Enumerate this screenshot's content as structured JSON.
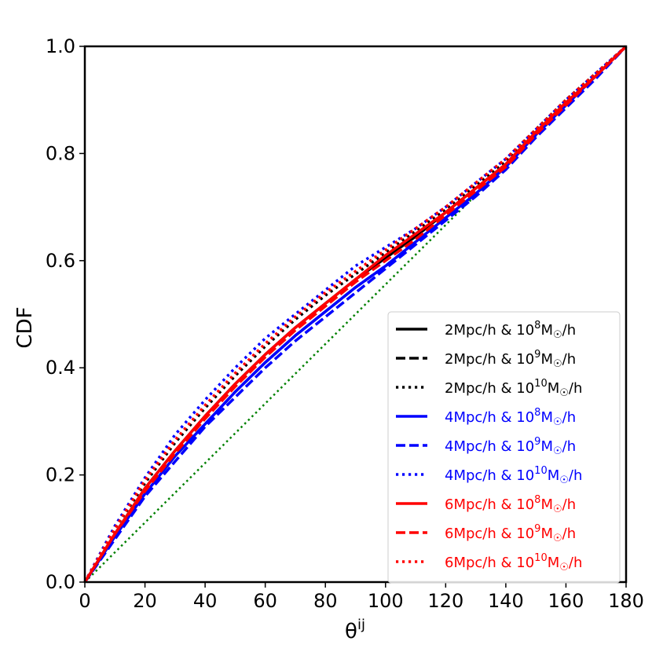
{
  "chart_data": {
    "type": "line",
    "title": "",
    "xlabel": "θ",
    "xlabel_superscript": "ij",
    "ylabel": "CDF",
    "xlim": [
      0,
      180
    ],
    "ylim": [
      0,
      1.0
    ],
    "xticks": [
      "0",
      "20",
      "40",
      "60",
      "80",
      "100",
      "120",
      "140",
      "160",
      "180"
    ],
    "yticks": [
      "0.0",
      "0.2",
      "0.4",
      "0.6",
      "0.8",
      "1.0"
    ],
    "grid": false,
    "legend_position": "bottom-right",
    "reference_line": {
      "name": "uniform reference",
      "color": "#008000",
      "style": "dotted",
      "x": [
        0,
        180
      ],
      "y": [
        0,
        1.0
      ]
    },
    "series": [
      {
        "name": "2Mpc/h & 10^8M☉/h",
        "legend": {
          "prefix": "2Mpc/h & 10",
          "exp": "8",
          "suffix": "M",
          "sun": "☉",
          "tail": "/h"
        },
        "color": "#000000",
        "style": "solid",
        "x": [
          0,
          10,
          20,
          30,
          40,
          50,
          60,
          70,
          80,
          90,
          100,
          110,
          120,
          130,
          140,
          150,
          160,
          170,
          180
        ],
        "y": [
          0.0,
          0.09,
          0.175,
          0.245,
          0.31,
          0.37,
          0.425,
          0.475,
          0.52,
          0.565,
          0.605,
          0.645,
          0.69,
          0.735,
          0.78,
          0.84,
          0.895,
          0.945,
          1.0
        ]
      },
      {
        "name": "2Mpc/h & 10^9M☉/h",
        "legend": {
          "prefix": "2Mpc/h & 10",
          "exp": "9",
          "suffix": "M",
          "sun": "☉",
          "tail": "/h"
        },
        "color": "#000000",
        "style": "dashed",
        "x": [
          0,
          10,
          20,
          30,
          40,
          50,
          60,
          70,
          80,
          90,
          100,
          110,
          120,
          130,
          140,
          150,
          160,
          170,
          180
        ],
        "y": [
          0.0,
          0.085,
          0.165,
          0.235,
          0.295,
          0.355,
          0.41,
          0.46,
          0.505,
          0.55,
          0.59,
          0.635,
          0.68,
          0.725,
          0.775,
          0.835,
          0.89,
          0.945,
          1.0
        ]
      },
      {
        "name": "2Mpc/h & 10^10M☉/h",
        "legend": {
          "prefix": "2Mpc/h & 10",
          "exp": "10",
          "suffix": "M",
          "sun": "☉",
          "tail": "/h"
        },
        "color": "#000000",
        "style": "dotted",
        "x": [
          0,
          10,
          20,
          30,
          40,
          50,
          60,
          70,
          80,
          90,
          100,
          110,
          120,
          130,
          140,
          150,
          160,
          170,
          180
        ],
        "y": [
          0.0,
          0.1,
          0.185,
          0.26,
          0.325,
          0.385,
          0.44,
          0.49,
          0.535,
          0.575,
          0.615,
          0.655,
          0.695,
          0.74,
          0.785,
          0.845,
          0.9,
          0.95,
          1.0
        ]
      },
      {
        "name": "4Mpc/h & 10^8M☉/h",
        "legend": {
          "prefix": "4Mpc/h & 10",
          "exp": "8",
          "suffix": "M",
          "sun": "☉",
          "tail": "/h"
        },
        "color": "#0000ff",
        "style": "solid",
        "x": [
          0,
          10,
          20,
          30,
          40,
          50,
          60,
          70,
          80,
          90,
          100,
          110,
          120,
          130,
          140,
          150,
          160,
          170,
          180
        ],
        "y": [
          0.0,
          0.085,
          0.165,
          0.235,
          0.295,
          0.355,
          0.41,
          0.46,
          0.505,
          0.55,
          0.59,
          0.635,
          0.68,
          0.725,
          0.775,
          0.835,
          0.89,
          0.945,
          1.0
        ]
      },
      {
        "name": "4Mpc/h & 10^9M☉/h",
        "legend": {
          "prefix": "4Mpc/h & 10",
          "exp": "9",
          "suffix": "M",
          "sun": "☉",
          "tail": "/h"
        },
        "color": "#0000ff",
        "style": "dashed",
        "x": [
          0,
          10,
          20,
          30,
          40,
          50,
          60,
          70,
          80,
          90,
          100,
          110,
          120,
          130,
          140,
          150,
          160,
          170,
          180
        ],
        "y": [
          0.0,
          0.08,
          0.16,
          0.225,
          0.29,
          0.345,
          0.4,
          0.45,
          0.495,
          0.54,
          0.585,
          0.63,
          0.675,
          0.72,
          0.77,
          0.83,
          0.885,
          0.94,
          1.0
        ]
      },
      {
        "name": "4Mpc/h & 10^10M☉/h",
        "legend": {
          "prefix": "4Mpc/h & 10",
          "exp": "10",
          "suffix": "M",
          "sun": "☉",
          "tail": "/h"
        },
        "color": "#0000ff",
        "style": "dotted",
        "x": [
          0,
          10,
          20,
          30,
          40,
          50,
          60,
          70,
          80,
          90,
          100,
          110,
          120,
          130,
          140,
          150,
          160,
          170,
          180
        ],
        "y": [
          0.0,
          0.105,
          0.195,
          0.275,
          0.34,
          0.4,
          0.455,
          0.5,
          0.545,
          0.59,
          0.625,
          0.66,
          0.7,
          0.745,
          0.79,
          0.845,
          0.9,
          0.95,
          1.0
        ]
      },
      {
        "name": "6Mpc/h & 10^8M☉/h",
        "legend": {
          "prefix": "6Mpc/h & 10",
          "exp": "8",
          "suffix": "M",
          "sun": "☉",
          "tail": "/h"
        },
        "color": "#ff0000",
        "style": "solid",
        "x": [
          0,
          10,
          20,
          30,
          40,
          50,
          60,
          70,
          80,
          90,
          100,
          110,
          120,
          130,
          140,
          150,
          160,
          170,
          180
        ],
        "y": [
          0.0,
          0.09,
          0.175,
          0.245,
          0.31,
          0.37,
          0.425,
          0.475,
          0.52,
          0.565,
          0.61,
          0.65,
          0.69,
          0.735,
          0.78,
          0.84,
          0.895,
          0.945,
          1.0
        ]
      },
      {
        "name": "6Mpc/h & 10^9M☉/h",
        "legend": {
          "prefix": "6Mpc/h & 10",
          "exp": "9",
          "suffix": "M",
          "sun": "☉",
          "tail": "/h"
        },
        "color": "#ff0000",
        "style": "dashed",
        "x": [
          0,
          10,
          20,
          30,
          40,
          50,
          60,
          70,
          80,
          90,
          100,
          110,
          120,
          130,
          140,
          150,
          160,
          170,
          180
        ],
        "y": [
          0.0,
          0.09,
          0.17,
          0.24,
          0.305,
          0.365,
          0.42,
          0.47,
          0.515,
          0.56,
          0.6,
          0.64,
          0.685,
          0.73,
          0.775,
          0.835,
          0.89,
          0.945,
          1.0
        ]
      },
      {
        "name": "6Mpc/h & 10^10M☉/h",
        "legend": {
          "prefix": "6Mpc/h & 10",
          "exp": "10",
          "suffix": "M",
          "sun": "☉",
          "tail": "/h"
        },
        "color": "#ff0000",
        "style": "dotted",
        "x": [
          0,
          10,
          20,
          30,
          40,
          50,
          60,
          70,
          80,
          90,
          100,
          110,
          120,
          130,
          140,
          150,
          160,
          170,
          180
        ],
        "y": [
          0.0,
          0.1,
          0.19,
          0.265,
          0.33,
          0.39,
          0.445,
          0.495,
          0.54,
          0.58,
          0.62,
          0.66,
          0.7,
          0.745,
          0.79,
          0.845,
          0.9,
          0.95,
          1.0
        ]
      }
    ]
  }
}
